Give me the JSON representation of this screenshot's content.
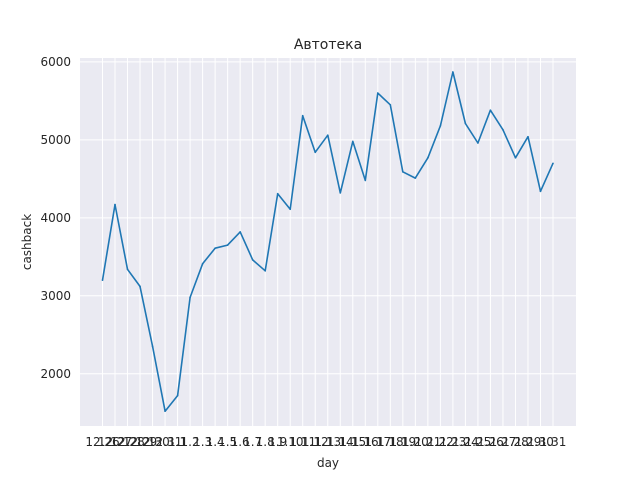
{
  "chart_data": {
    "type": "line",
    "title": "Автотека",
    "xlabel": "day",
    "ylabel": "cashback",
    "categories": [
      "12.26",
      "12.27",
      "12.28",
      "12.29",
      "12.30",
      "12.31",
      "1.1",
      "1.2",
      "1.3",
      "1.4",
      "1.5",
      "1.6",
      "1.7",
      "1.8",
      "1.9",
      "1.10",
      "1.11",
      "1.12",
      "1.13",
      "1.14",
      "1.15",
      "1.16",
      "1.17",
      "1.18",
      "1.19",
      "1.20",
      "1.21",
      "1.22",
      "1.23",
      "1.24",
      "1.25",
      "1.26",
      "1.27",
      "1.28",
      "1.29",
      "1.30",
      "1.31"
    ],
    "tick_labels": [
      "12.26",
      "12.27",
      "12.28",
      "12.29",
      "12.30",
      "12.31",
      "1.1",
      "1.2",
      "1.3",
      "1.4",
      "1.5",
      "1.6",
      "1.7",
      "1.8",
      "1.9",
      "1.10",
      "1.11",
      "1.12",
      "1.13",
      "1.14",
      "1.15",
      "1.16",
      "1.17",
      "1.18",
      "1.19",
      "1.20",
      "1.21",
      "1.22",
      "1.23",
      "1.24",
      "1.25",
      "1.26",
      "1.27",
      "1.28",
      "1.29",
      "1.30",
      "1.31"
    ],
    "series": [
      {
        "values": [
          3200,
          4170,
          3340,
          3120,
          2350,
          1520,
          1720,
          2980,
          3410,
          3610,
          3650,
          3820,
          3460,
          3320,
          4310,
          4110,
          5310,
          4840,
          5060,
          4320,
          4980,
          4480,
          5600,
          5450,
          4590,
          4510,
          4770,
          5180,
          5870,
          5210,
          4960,
          5380,
          5130,
          4770,
          5040,
          4340,
          4700
        ],
        "color": "#1f77b4"
      }
    ],
    "yticks": [
      2000,
      3000,
      4000,
      5000,
      6000
    ],
    "ytick_labels": [
      "2000",
      "3000",
      "4000",
      "5000",
      "6000"
    ],
    "ylim": [
      1330,
      6050
    ],
    "grid": true,
    "background": "#eaeaf2",
    "grid_color": "#ffffff"
  }
}
